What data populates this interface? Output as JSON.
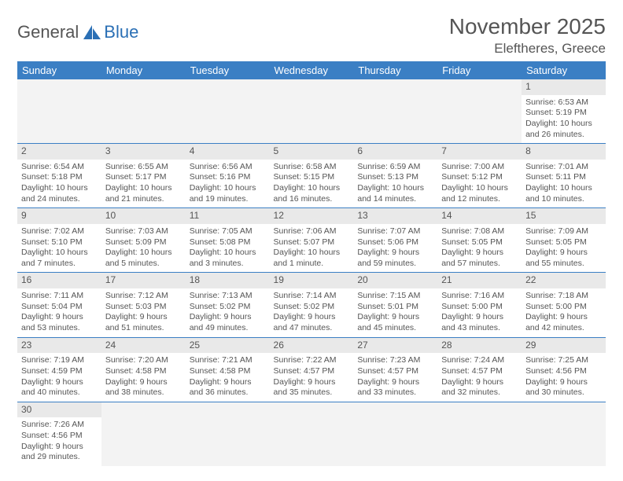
{
  "logo": {
    "text_general": "General",
    "text_blue": "Blue"
  },
  "title": "November 2025",
  "subtitle": "Eleftheres, Greece",
  "colors": {
    "header_bg": "#3b7fc4",
    "header_text": "#ffffff",
    "daynum_bg": "#e9e9e9",
    "border": "#3b7fc4",
    "body_text": "#555555",
    "empty_bg": "#f3f3f3"
  },
  "daynames": [
    "Sunday",
    "Monday",
    "Tuesday",
    "Wednesday",
    "Thursday",
    "Friday",
    "Saturday"
  ],
  "weeks": [
    [
      null,
      null,
      null,
      null,
      null,
      null,
      {
        "n": "1",
        "sunrise": "6:53 AM",
        "sunset": "5:19 PM",
        "daylight": "10 hours and 26 minutes."
      }
    ],
    [
      {
        "n": "2",
        "sunrise": "6:54 AM",
        "sunset": "5:18 PM",
        "daylight": "10 hours and 24 minutes."
      },
      {
        "n": "3",
        "sunrise": "6:55 AM",
        "sunset": "5:17 PM",
        "daylight": "10 hours and 21 minutes."
      },
      {
        "n": "4",
        "sunrise": "6:56 AM",
        "sunset": "5:16 PM",
        "daylight": "10 hours and 19 minutes."
      },
      {
        "n": "5",
        "sunrise": "6:58 AM",
        "sunset": "5:15 PM",
        "daylight": "10 hours and 16 minutes."
      },
      {
        "n": "6",
        "sunrise": "6:59 AM",
        "sunset": "5:13 PM",
        "daylight": "10 hours and 14 minutes."
      },
      {
        "n": "7",
        "sunrise": "7:00 AM",
        "sunset": "5:12 PM",
        "daylight": "10 hours and 12 minutes."
      },
      {
        "n": "8",
        "sunrise": "7:01 AM",
        "sunset": "5:11 PM",
        "daylight": "10 hours and 10 minutes."
      }
    ],
    [
      {
        "n": "9",
        "sunrise": "7:02 AM",
        "sunset": "5:10 PM",
        "daylight": "10 hours and 7 minutes."
      },
      {
        "n": "10",
        "sunrise": "7:03 AM",
        "sunset": "5:09 PM",
        "daylight": "10 hours and 5 minutes."
      },
      {
        "n": "11",
        "sunrise": "7:05 AM",
        "sunset": "5:08 PM",
        "daylight": "10 hours and 3 minutes."
      },
      {
        "n": "12",
        "sunrise": "7:06 AM",
        "sunset": "5:07 PM",
        "daylight": "10 hours and 1 minute."
      },
      {
        "n": "13",
        "sunrise": "7:07 AM",
        "sunset": "5:06 PM",
        "daylight": "9 hours and 59 minutes."
      },
      {
        "n": "14",
        "sunrise": "7:08 AM",
        "sunset": "5:05 PM",
        "daylight": "9 hours and 57 minutes."
      },
      {
        "n": "15",
        "sunrise": "7:09 AM",
        "sunset": "5:05 PM",
        "daylight": "9 hours and 55 minutes."
      }
    ],
    [
      {
        "n": "16",
        "sunrise": "7:11 AM",
        "sunset": "5:04 PM",
        "daylight": "9 hours and 53 minutes."
      },
      {
        "n": "17",
        "sunrise": "7:12 AM",
        "sunset": "5:03 PM",
        "daylight": "9 hours and 51 minutes."
      },
      {
        "n": "18",
        "sunrise": "7:13 AM",
        "sunset": "5:02 PM",
        "daylight": "9 hours and 49 minutes."
      },
      {
        "n": "19",
        "sunrise": "7:14 AM",
        "sunset": "5:02 PM",
        "daylight": "9 hours and 47 minutes."
      },
      {
        "n": "20",
        "sunrise": "7:15 AM",
        "sunset": "5:01 PM",
        "daylight": "9 hours and 45 minutes."
      },
      {
        "n": "21",
        "sunrise": "7:16 AM",
        "sunset": "5:00 PM",
        "daylight": "9 hours and 43 minutes."
      },
      {
        "n": "22",
        "sunrise": "7:18 AM",
        "sunset": "5:00 PM",
        "daylight": "9 hours and 42 minutes."
      }
    ],
    [
      {
        "n": "23",
        "sunrise": "7:19 AM",
        "sunset": "4:59 PM",
        "daylight": "9 hours and 40 minutes."
      },
      {
        "n": "24",
        "sunrise": "7:20 AM",
        "sunset": "4:58 PM",
        "daylight": "9 hours and 38 minutes."
      },
      {
        "n": "25",
        "sunrise": "7:21 AM",
        "sunset": "4:58 PM",
        "daylight": "9 hours and 36 minutes."
      },
      {
        "n": "26",
        "sunrise": "7:22 AM",
        "sunset": "4:57 PM",
        "daylight": "9 hours and 35 minutes."
      },
      {
        "n": "27",
        "sunrise": "7:23 AM",
        "sunset": "4:57 PM",
        "daylight": "9 hours and 33 minutes."
      },
      {
        "n": "28",
        "sunrise": "7:24 AM",
        "sunset": "4:57 PM",
        "daylight": "9 hours and 32 minutes."
      },
      {
        "n": "29",
        "sunrise": "7:25 AM",
        "sunset": "4:56 PM",
        "daylight": "9 hours and 30 minutes."
      }
    ],
    [
      {
        "n": "30",
        "sunrise": "7:26 AM",
        "sunset": "4:56 PM",
        "daylight": "9 hours and 29 minutes."
      },
      null,
      null,
      null,
      null,
      null,
      null
    ]
  ],
  "labels": {
    "sunrise": "Sunrise:",
    "sunset": "Sunset:",
    "daylight": "Daylight:"
  }
}
